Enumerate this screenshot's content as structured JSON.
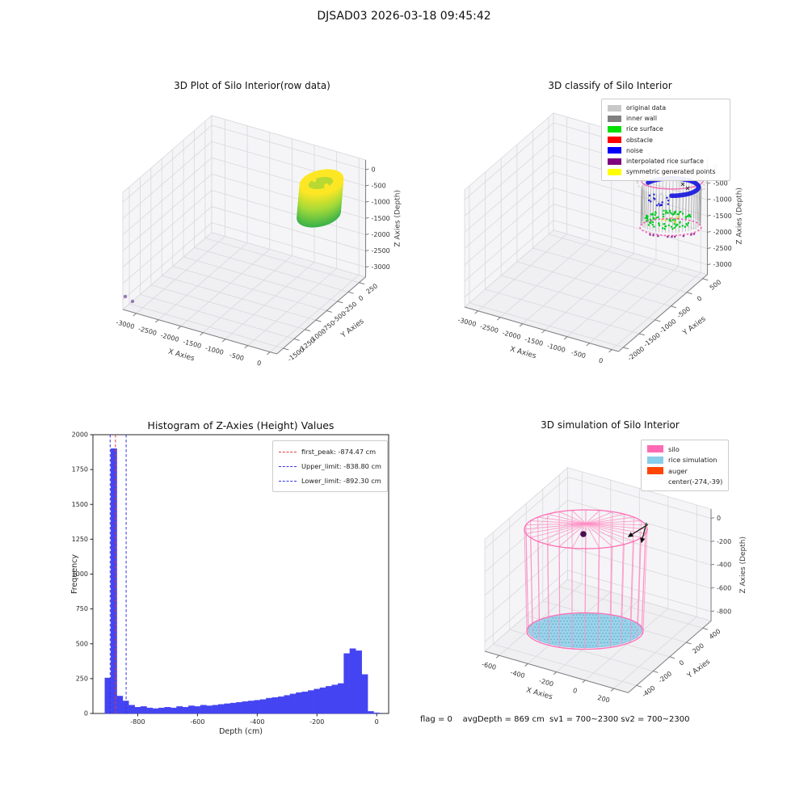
{
  "figure": {
    "suptitle": "DJSAD03 2026-03-18 09:45:42",
    "footer": "flag = 0    avgDepth = 869 cm  sv1 = 700~2300 sv2 = 700~2300",
    "background": "#ffffff"
  },
  "chart_data": [
    {
      "id": "raw",
      "type": "scatter3d",
      "title": "3D Plot of Silo Interior(row data)",
      "xlabel": "X Axies",
      "ylabel": "Y Axies",
      "zlabel": "Z Axies (Depth)",
      "xticks": [
        -3000,
        -2500,
        -2000,
        -1500,
        -1000,
        -500,
        0
      ],
      "yticks": [
        250,
        0,
        -250,
        -500,
        -750,
        -1000,
        -1250,
        -1500
      ],
      "zticks": [
        0,
        -500,
        -1000,
        -1500,
        -2000,
        -2500,
        -3000
      ],
      "xlim": [
        -3300,
        150
      ],
      "ylim": [
        -1650,
        400
      ],
      "zlim": [
        -3300,
        300
      ],
      "clusters": [
        {
          "name": "silo interior point cloud",
          "shape": "hollow cylinder",
          "center_xy": [
            -550,
            -100
          ],
          "radius": 420,
          "z_top": -800,
          "z_bottom": -2000,
          "colormap": "viridis yellow(top) to green(bottom)",
          "colors": [
            "#fde725",
            "#a2d939",
            "#3bb24a"
          ]
        },
        {
          "name": "outlier points",
          "color": "#8d6cab",
          "points_xyz": [
            [
              -3100,
              -1400,
              -3000
            ],
            [
              -3000,
              -1450,
              -3050
            ]
          ]
        }
      ]
    },
    {
      "id": "classify",
      "type": "scatter3d",
      "title": "3D classify of Silo Interior",
      "xlabel": "X Axies",
      "ylabel": "Y Axies",
      "zlabel": "Z Axies (Depth)",
      "xticks": [
        -3000,
        -2500,
        -2000,
        -1500,
        -1000,
        -500,
        0
      ],
      "yticks": [
        500,
        0,
        -500,
        -1000,
        -1500,
        -2000
      ],
      "zticks": [
        0,
        -500,
        -1000,
        -1500,
        -2000,
        -2500,
        -3000
      ],
      "xlim": [
        -3300,
        150
      ],
      "ylim": [
        -2150,
        650
      ],
      "zlim": [
        -3300,
        300
      ],
      "legend": [
        {
          "label": "original data",
          "color": "#c8c8c8"
        },
        {
          "label": "inner wall",
          "color": "#808080"
        },
        {
          "label": "rice surface",
          "color": "#00e000"
        },
        {
          "label": "obstacle",
          "color": "#ff0000"
        },
        {
          "label": "noise",
          "color": "#0000ff"
        },
        {
          "label": "interpolated rice surface",
          "color": "#800080"
        },
        {
          "label": "symmetric generated points",
          "color": "#ffff00"
        }
      ],
      "clusters": [
        {
          "name": "inner wall cylinder",
          "color": "#8f8f8f"
        },
        {
          "name": "noise ring near top",
          "color": "#1717dd"
        },
        {
          "name": "rice surface at bottom",
          "color": "#00cc22"
        },
        {
          "name": "interpolated rice surface rims",
          "color": "#f45fb5"
        },
        {
          "name": "symmetric generated points",
          "color": "#dddd00"
        }
      ]
    },
    {
      "id": "histogram",
      "type": "bar",
      "title": "Histogram of Z-Axies (Height) Values",
      "xlabel": "Depth (cm)",
      "ylabel": "Frequency",
      "xticks": [
        -800,
        -600,
        -400,
        -200,
        0
      ],
      "yticks": [
        0,
        250,
        500,
        750,
        1000,
        1250,
        1500,
        1750,
        2000
      ],
      "xlim": [
        -950,
        40
      ],
      "ylim": [
        0,
        2000
      ],
      "bin_start": -910,
      "bin_width": 20,
      "frequencies": [
        255,
        1900,
        125,
        90,
        60,
        45,
        50,
        40,
        35,
        40,
        45,
        40,
        50,
        45,
        55,
        50,
        60,
        55,
        60,
        65,
        70,
        75,
        80,
        85,
        90,
        95,
        100,
        110,
        115,
        120,
        130,
        140,
        150,
        155,
        165,
        175,
        185,
        195,
        205,
        215,
        430,
        465,
        450,
        280,
        15,
        5
      ],
      "bar_color": "#4444f2",
      "vlines": [
        {
          "label": "first_peak: -874.47 cm",
          "value": -874.47,
          "color": "#e03a3a",
          "style": "dashed"
        },
        {
          "label": "Upper_limit: -838.80 cm",
          "value": -838.8,
          "color": "#3535e0",
          "style": "dashed"
        },
        {
          "label": "Lower_limit: -892.30 cm",
          "value": -892.3,
          "color": "#3535e0",
          "style": "dashed"
        }
      ]
    },
    {
      "id": "simulation",
      "type": "scatter3d",
      "title": "3D simulation of Silo Interior",
      "xlabel": "X Axies",
      "ylabel": "Y Axies",
      "zlabel": "Z Axies (Depth)",
      "xticks": [
        -600,
        -400,
        -200,
        0,
        200
      ],
      "yticks": [
        400,
        200,
        0,
        -200,
        -400
      ],
      "zticks": [
        0,
        -200,
        -400,
        -600,
        -800
      ],
      "xlim": [
        -700,
        300
      ],
      "ylim": [
        -500,
        500
      ],
      "zlim": [
        -880,
        80
      ],
      "legend": [
        {
          "label": "silo",
          "color": "#ff69b4"
        },
        {
          "label": "rice simulation",
          "color": "#87ceeb"
        },
        {
          "label": "auger",
          "color": "#ff4500"
        },
        {
          "label": "center(-274,-39)",
          "color": null
        }
      ],
      "elements": [
        {
          "name": "silo wireframe cylinder",
          "color": "#ff69b4",
          "center_xy": [
            -274,
            -39
          ],
          "radius": 330,
          "z_top": 0,
          "z_bottom": -700
        },
        {
          "name": "rice simulation surface disk",
          "color": "#87ceeb",
          "z": -700
        },
        {
          "name": "auger center marker",
          "color": "#471052",
          "position_xy": [
            -274,
            -39
          ]
        }
      ]
    }
  ]
}
